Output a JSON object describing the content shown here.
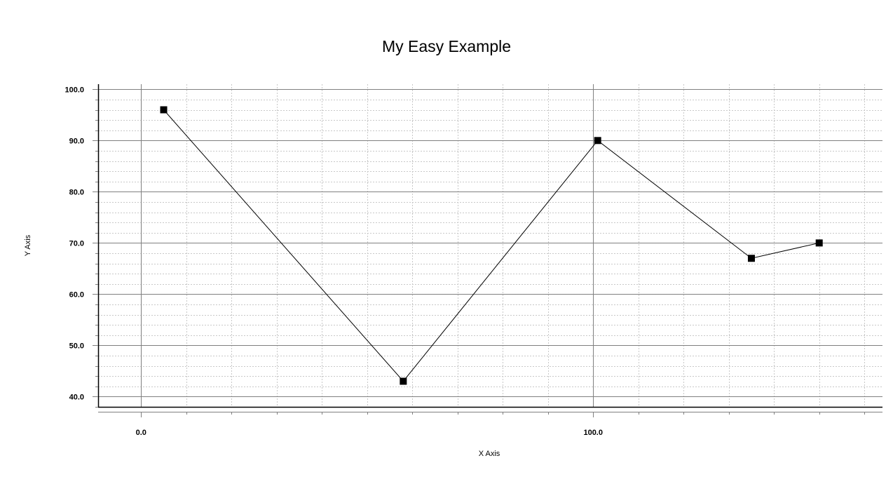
{
  "chart_data": {
    "type": "line",
    "title": "My Easy Example",
    "xlabel": "X Axis",
    "ylabel": "Y Axis",
    "xlim": [
      -9.5,
      164
    ],
    "ylim": [
      38,
      101
    ],
    "x_ticks": [
      "0.0",
      "100.0"
    ],
    "y_ticks": [
      "40.0",
      "50.0",
      "60.0",
      "70.0",
      "80.0",
      "90.0",
      "100.0"
    ],
    "grid": true,
    "legend": "none",
    "colors": {
      "line": "#000000",
      "marker": "#000000",
      "major_grid": "#808080",
      "minor_grid": "#c8c8c8"
    },
    "series": [
      {
        "points": [
          {
            "x": 5,
            "y": 96
          },
          {
            "x": 58,
            "y": 43
          },
          {
            "x": 101,
            "y": 90
          },
          {
            "x": 135,
            "y": 67
          },
          {
            "x": 150,
            "y": 70
          }
        ]
      }
    ]
  }
}
